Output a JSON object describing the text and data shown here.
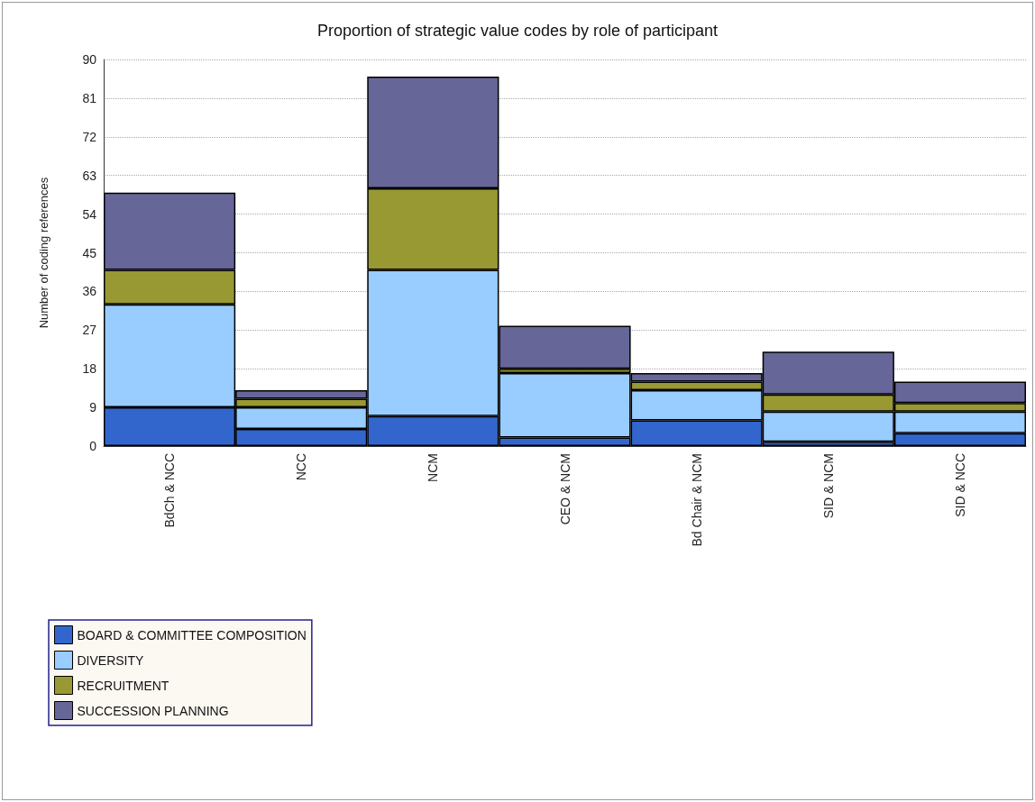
{
  "chart_data": {
    "type": "bar",
    "title": "Proportion of strategic value codes by role of participant",
    "ylabel": "Number of coding references",
    "categories": [
      "BdCh & NCC",
      "NCC",
      "NCM",
      "CEO & NCM",
      "Bd Chair & NCM",
      "SID & NCM",
      "SID & NCC"
    ],
    "series": [
      {
        "name": "BOARD & COMMITTEE COMPOSITION",
        "color": "#3366cc",
        "values": [
          9,
          4,
          7,
          2,
          6,
          1,
          3
        ]
      },
      {
        "name": "DIVERSITY",
        "color": "#99ccff",
        "values": [
          24,
          5,
          34,
          15,
          7,
          7,
          5
        ]
      },
      {
        "name": "RECRUITMENT",
        "color": "#999933",
        "values": [
          8,
          2,
          19,
          1,
          2,
          4,
          2
        ]
      },
      {
        "name": "SUCCESSION PLANNING",
        "color": "#666699",
        "values": [
          18,
          2,
          26,
          10,
          2,
          10,
          5
        ]
      }
    ],
    "stacked": true,
    "ylim": [
      0,
      90
    ],
    "yticks": [
      0,
      9,
      18,
      27,
      36,
      45,
      54,
      63,
      72,
      81,
      90
    ],
    "grid": "y",
    "legend": "bottom"
  }
}
